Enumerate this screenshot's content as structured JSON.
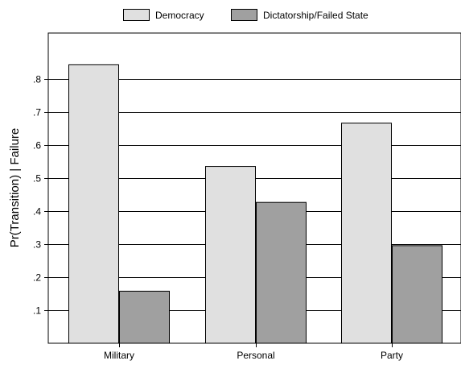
{
  "chart_data": {
    "type": "bar",
    "title": "",
    "xlabel": "",
    "ylabel": "Pr(Transition) | Failure",
    "categories": [
      "Military",
      "Personal",
      "Party"
    ],
    "series": [
      {
        "name": "Democracy",
        "values": [
          0.845,
          0.537,
          0.668
        ],
        "color": "#e0e0e0"
      },
      {
        "name": "Dictatorship/Failed State",
        "values": [
          0.159,
          0.428,
          0.297
        ],
        "color": "#a0a0a0"
      }
    ],
    "ylim": [
      0,
      0.94
    ],
    "yticks": [
      0.1,
      0.2,
      0.3,
      0.4,
      0.5,
      0.6,
      0.7,
      0.8
    ],
    "ytick_labels": [
      ".1",
      ".2",
      ".3",
      ".4",
      ".5",
      ".6",
      ".7",
      ".8"
    ],
    "grid": true,
    "legend_position": "top"
  }
}
